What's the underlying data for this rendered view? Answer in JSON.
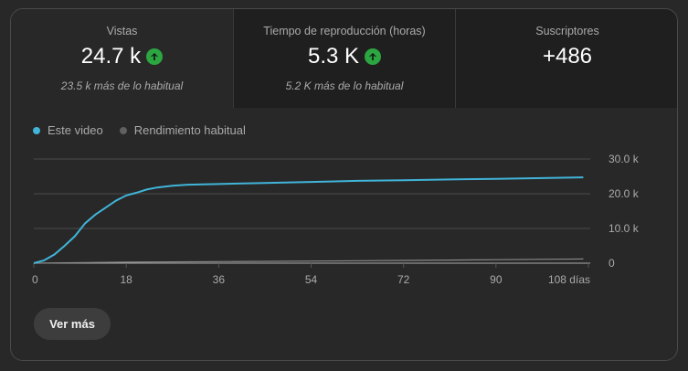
{
  "stats": [
    {
      "label": "Vistas",
      "value": "24.7 k",
      "trend_icon": "arrow-up-icon",
      "sub": "23.5 k más de lo habitual"
    },
    {
      "label": "Tiempo de reproducción (horas)",
      "value": "5.3 K",
      "trend_icon": "arrow-up-icon",
      "sub": "5.2 K más de lo habitual"
    },
    {
      "label": "Suscriptores",
      "value": "+486"
    }
  ],
  "legend": [
    {
      "label": "Este video",
      "color": "#3ea6ff"
    },
    {
      "label": "Rendimiento habitual",
      "color": "#606060"
    }
  ],
  "button": {
    "label": "Ver más"
  },
  "colors": {
    "series_this_video": "#41b4d9",
    "series_typical": "#8a8a8a",
    "trend_up": "#2ba640"
  },
  "chart_data": {
    "type": "line",
    "title": "",
    "xlabel": "",
    "ylabel": "",
    "x_ticks": [
      "0",
      "18",
      "36",
      "54",
      "72",
      "90",
      "108 días"
    ],
    "y_ticks": [
      "0",
      "10.0 k",
      "20.0 k",
      "30.0 k"
    ],
    "ylim": [
      0,
      30000
    ],
    "xlim": [
      0,
      108
    ],
    "grid": true,
    "legend_position": "top-left",
    "series": [
      {
        "name": "Este video",
        "x": [
          0,
          2,
          4,
          6,
          8,
          10,
          12,
          14,
          16,
          18,
          20,
          22,
          24,
          27,
          30,
          36,
          45,
          54,
          63,
          72,
          81,
          90,
          99,
          107
        ],
        "y": [
          0,
          800,
          2500,
          5000,
          7800,
          11500,
          14000,
          16000,
          18000,
          19500,
          20300,
          21200,
          21800,
          22300,
          22600,
          22800,
          23100,
          23400,
          23700,
          23900,
          24100,
          24300,
          24500,
          24700
        ]
      },
      {
        "name": "Rendimiento habitual",
        "x": [
          0,
          18,
          36,
          54,
          72,
          90,
          107
        ],
        "y": [
          0,
          300,
          450,
          600,
          800,
          1000,
          1200
        ]
      }
    ]
  }
}
